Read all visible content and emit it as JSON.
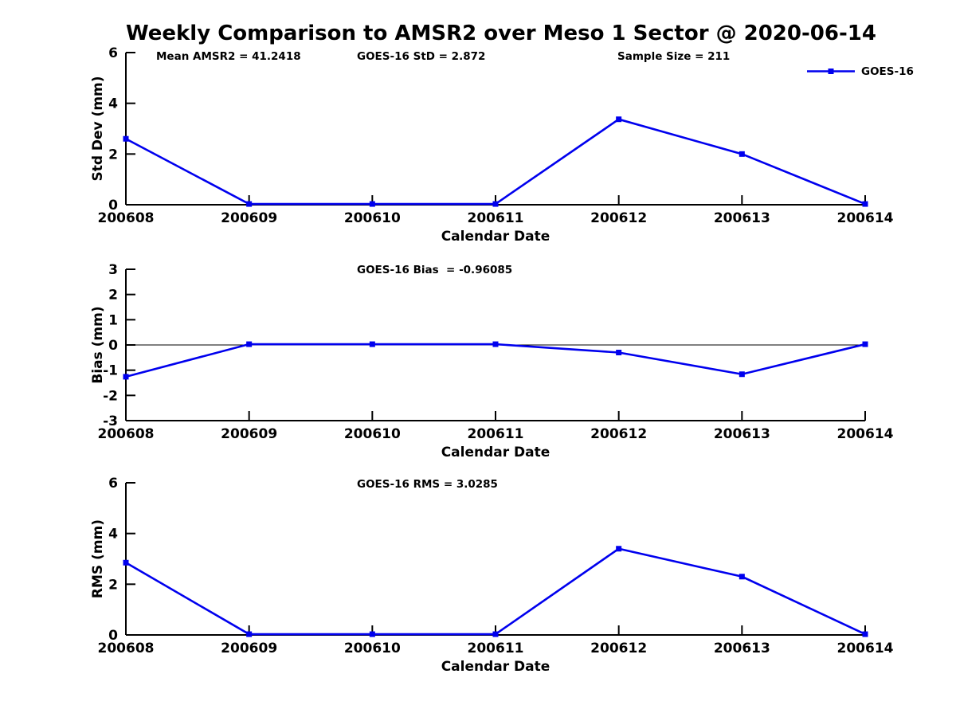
{
  "title": "Weekly Comparison to AMSR2 over Meso 1 Sector @ 2020-06-14",
  "colors": {
    "line": "#0000EE",
    "axis": "#000000",
    "text": "#000000",
    "background": "#FFFFFF"
  },
  "legend": {
    "label": "GOES-16"
  },
  "chart_data": [
    {
      "type": "line",
      "panel": "std-dev",
      "categories": [
        "200608",
        "200609",
        "200610",
        "200611",
        "200612",
        "200613",
        "200614"
      ],
      "series": [
        {
          "name": "GOES-16",
          "values": [
            2.6,
            0.03,
            0.03,
            0.03,
            3.37,
            2.0,
            0.03
          ]
        }
      ],
      "xlabel": "Calendar Date",
      "ylabel": "Std Dev (mm)",
      "ylim": [
        0,
        6
      ],
      "yticks": [
        0,
        2,
        4,
        6
      ],
      "annotations": [
        "Mean AMSR2 = 41.2418",
        "GOES-16 StD = 2.872",
        "Sample Size = 211"
      ],
      "legend_visible": true,
      "zero_line": false,
      "grid": false,
      "marker": "square"
    },
    {
      "type": "line",
      "panel": "bias",
      "categories": [
        "200608",
        "200609",
        "200610",
        "200611",
        "200612",
        "200613",
        "200614"
      ],
      "series": [
        {
          "name": "GOES-16",
          "values": [
            -1.26,
            0.03,
            0.03,
            0.03,
            -0.3,
            -1.16,
            0.03
          ]
        }
      ],
      "xlabel": "Calendar Date",
      "ylabel": "Bias (mm)",
      "ylim": [
        -3,
        3
      ],
      "yticks": [
        -3,
        -2,
        -1,
        0,
        1,
        2,
        3
      ],
      "annotations": [
        "GOES-16 Bias  = -0.96085"
      ],
      "legend_visible": false,
      "zero_line": true,
      "grid": false,
      "marker": "square"
    },
    {
      "type": "line",
      "panel": "rms",
      "categories": [
        "200608",
        "200609",
        "200610",
        "200611",
        "200612",
        "200613",
        "200614"
      ],
      "series": [
        {
          "name": "GOES-16",
          "values": [
            2.85,
            0.03,
            0.03,
            0.03,
            3.4,
            2.3,
            0.03
          ]
        }
      ],
      "xlabel": "Calendar Date",
      "ylabel": "RMS (mm)",
      "ylim": [
        0,
        6
      ],
      "yticks": [
        0,
        2,
        4,
        6
      ],
      "annotations": [
        "GOES-16 RMS = 3.0285"
      ],
      "legend_visible": false,
      "zero_line": false,
      "grid": false,
      "marker": "square"
    }
  ]
}
